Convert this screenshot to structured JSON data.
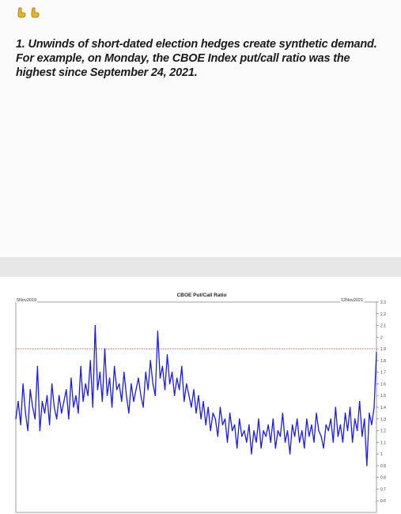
{
  "post": {
    "emojis": [
      "point-down-icon",
      "point-down-icon"
    ],
    "text": "1. Unwinds of short-dated election hedges create synthetic demand. For example, on Monday, the CBOE Index put/call ratio was the highest since September 24, 2021."
  },
  "chart": {
    "title": "CBOE Put/Call Ratio",
    "start_date": "5Nov2019",
    "end_date": "12Nov2021"
  },
  "chart_data": {
    "type": "line",
    "title": "CBOE Put/Call Ratio",
    "xlabel": "",
    "ylabel": "",
    "ylim": [
      0.5,
      2.3
    ],
    "y_ticks": [
      "2.3",
      "2.2",
      "2.1",
      "2",
      "1.9",
      "1.8",
      "1.7",
      "1.6",
      "1.5",
      "1.4",
      "1.3",
      "1.2",
      "1.1",
      "1",
      "0.9",
      "0.8",
      "0.7",
      "0.6"
    ],
    "reference_line": 1.9,
    "series": [
      {
        "color": "#1a1aee",
        "values": [
          1.3,
          1.45,
          1.25,
          1.6,
          1.35,
          1.2,
          1.55,
          1.4,
          1.3,
          1.75,
          1.2,
          1.45,
          1.35,
          1.5,
          1.25,
          1.6,
          1.4,
          1.3,
          1.5,
          1.35,
          1.45,
          1.55,
          1.3,
          1.65,
          1.4,
          1.5,
          1.35,
          1.75,
          1.45,
          1.6,
          1.5,
          1.8,
          1.4,
          2.1,
          1.55,
          1.7,
          1.45,
          1.9,
          1.5,
          1.65,
          1.4,
          1.75,
          1.55,
          1.6,
          1.45,
          1.7,
          1.5,
          1.35,
          1.6,
          1.45,
          1.55,
          1.65,
          1.5,
          1.4,
          1.7,
          1.55,
          1.8,
          1.6,
          1.5,
          2.05,
          1.65,
          1.75,
          1.55,
          1.85,
          1.6,
          1.7,
          1.5,
          1.65,
          1.55,
          1.75,
          1.45,
          1.6,
          1.5,
          1.4,
          1.55,
          1.35,
          1.5,
          1.3,
          1.45,
          1.25,
          1.4,
          1.2,
          1.35,
          1.3,
          1.15,
          1.4,
          1.25,
          1.3,
          1.1,
          1.35,
          1.2,
          1.25,
          1.05,
          1.3,
          1.15,
          1.2,
          1.1,
          1.25,
          1.0,
          1.2,
          1.1,
          1.3,
          1.05,
          1.2,
          1.15,
          1.25,
          1.1,
          1.3,
          1.05,
          1.2,
          1.15,
          1.35,
          1.1,
          1.2,
          1.0,
          1.25,
          1.15,
          1.3,
          1.1,
          1.2,
          1.05,
          1.3,
          1.15,
          1.25,
          1.1,
          1.35,
          1.2,
          1.15,
          1.05,
          1.25,
          1.2,
          1.3,
          1.1,
          1.4,
          1.15,
          1.25,
          1.1,
          1.35,
          1.2,
          1.4,
          1.1,
          1.3,
          1.2,
          1.45,
          1.15,
          1.3,
          0.9,
          1.35,
          1.25,
          1.4,
          1.87
        ]
      }
    ]
  }
}
